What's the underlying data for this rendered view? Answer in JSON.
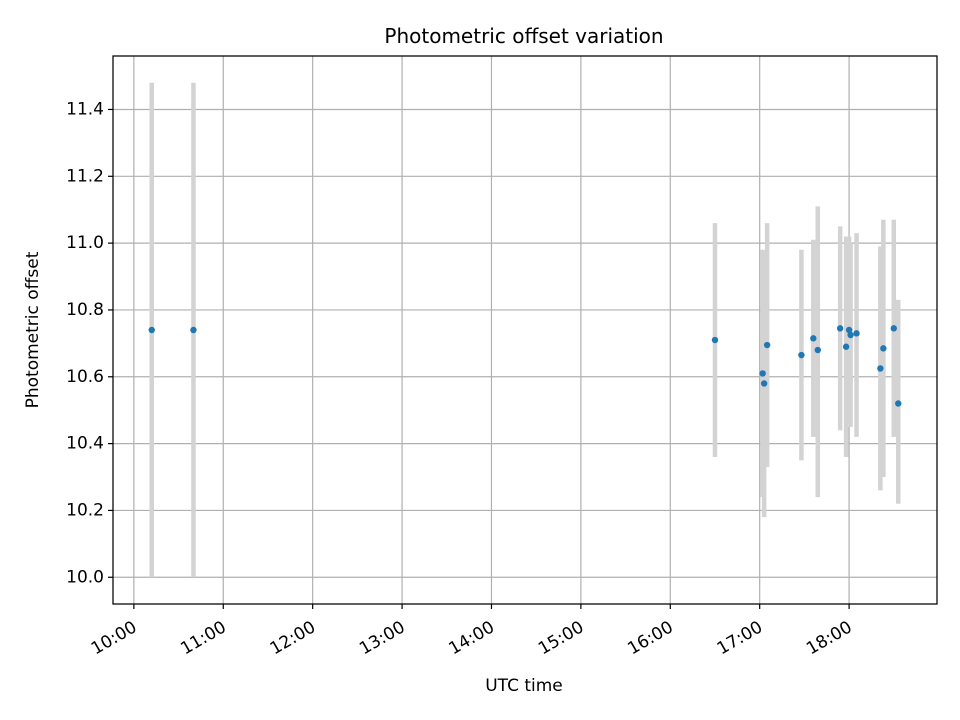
{
  "chart_data": {
    "type": "scatter",
    "title": "Photometric offset variation",
    "xlabel": "UTC time",
    "ylabel": "Photometric offset",
    "xlim": [
      "09:46",
      "18:59"
    ],
    "ylim": [
      9.92,
      11.56
    ],
    "xticks": [
      "10:00",
      "11:00",
      "12:00",
      "13:00",
      "14:00",
      "15:00",
      "16:00",
      "17:00",
      "18:00"
    ],
    "yticks": [
      "10.0",
      "10.2",
      "10.4",
      "10.6",
      "10.8",
      "11.0",
      "11.2",
      "11.4"
    ],
    "grid": true,
    "colors": {
      "point": "#1f77b4",
      "errorbar": "#d3d3d3",
      "grid": "#b0b0b0"
    },
    "points": [
      {
        "x": "10:12",
        "y": 10.74,
        "ylow": 10.0,
        "yhigh": 11.48
      },
      {
        "x": "10:40",
        "y": 10.74,
        "ylow": 10.0,
        "yhigh": 11.48
      },
      {
        "x": "16:30",
        "y": 10.71,
        "ylow": 10.36,
        "yhigh": 11.06
      },
      {
        "x": "17:02",
        "y": 10.61,
        "ylow": 10.24,
        "yhigh": 10.98
      },
      {
        "x": "17:03",
        "y": 10.58,
        "ylow": 10.18,
        "yhigh": 10.97
      },
      {
        "x": "17:05",
        "y": 10.695,
        "ylow": 10.33,
        "yhigh": 11.06
      },
      {
        "x": "17:28",
        "y": 10.665,
        "ylow": 10.35,
        "yhigh": 10.98
      },
      {
        "x": "17:36",
        "y": 10.715,
        "ylow": 10.42,
        "yhigh": 11.01
      },
      {
        "x": "17:39",
        "y": 10.68,
        "ylow": 10.24,
        "yhigh": 11.11
      },
      {
        "x": "17:54",
        "y": 10.745,
        "ylow": 10.44,
        "yhigh": 11.05
      },
      {
        "x": "17:58",
        "y": 10.69,
        "ylow": 10.36,
        "yhigh": 11.02
      },
      {
        "x": "18:00",
        "y": 10.74,
        "ylow": 10.46,
        "yhigh": 11.02
      },
      {
        "x": "18:01",
        "y": 10.725,
        "ylow": 10.45,
        "yhigh": 11.0
      },
      {
        "x": "18:05",
        "y": 10.73,
        "ylow": 10.42,
        "yhigh": 11.03
      },
      {
        "x": "18:21",
        "y": 10.625,
        "ylow": 10.26,
        "yhigh": 10.99
      },
      {
        "x": "18:23",
        "y": 10.685,
        "ylow": 10.3,
        "yhigh": 11.07
      },
      {
        "x": "18:30",
        "y": 10.745,
        "ylow": 10.42,
        "yhigh": 11.07
      },
      {
        "x": "18:33",
        "y": 10.52,
        "ylow": 10.22,
        "yhigh": 10.83
      }
    ]
  }
}
